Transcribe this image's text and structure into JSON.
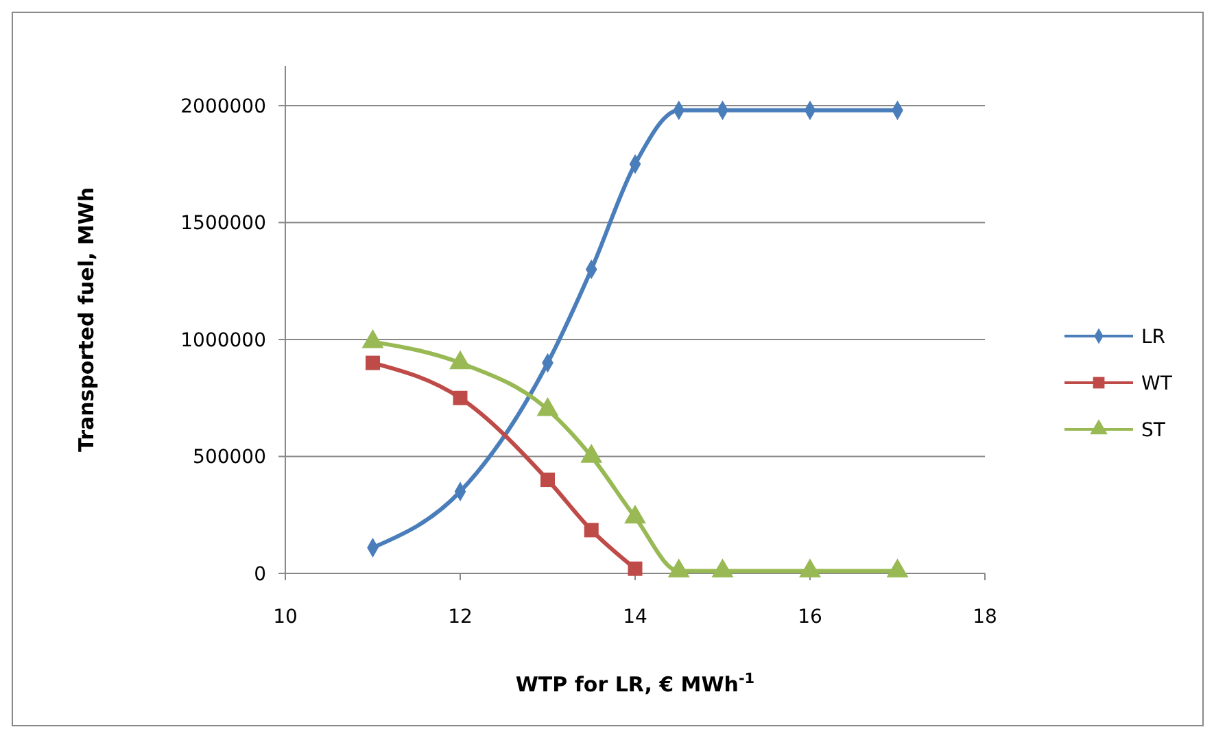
{
  "chart_data": {
    "type": "line",
    "xlabel": "WTP for LR, € MWh$^{-1}$",
    "ylabel": "Transported fuel, MWh",
    "xlim": [
      10,
      18
    ],
    "xticks": [
      10,
      12,
      14,
      16,
      18
    ],
    "ylim": [
      0,
      2170000
    ],
    "yticks": [
      0,
      500000,
      1000000,
      1500000,
      2000000
    ],
    "grid": "y",
    "legend": "right",
    "line_style": "solid",
    "series": [
      {
        "name": "LR",
        "color": "#4a7ebb",
        "marker": "diamond",
        "x": [
          11,
          12,
          13,
          13.5,
          14,
          14.5,
          15,
          16,
          17
        ],
        "values": [
          110000,
          350000,
          900000,
          1300000,
          1750000,
          1980000,
          1980000,
          1980000,
          1980000
        ]
      },
      {
        "name": "WT",
        "color": "#be4b48",
        "marker": "square",
        "x": [
          11,
          12,
          13,
          13.5,
          14
        ],
        "values": [
          900000,
          750000,
          400000,
          185000,
          20000
        ]
      },
      {
        "name": "ST",
        "color": "#98b954",
        "marker": "triangle",
        "x": [
          11,
          12,
          13,
          13.5,
          14,
          14.5,
          15,
          16,
          17
        ],
        "values": [
          990000,
          900000,
          700000,
          500000,
          240000,
          10000,
          10000,
          10000,
          10000
        ]
      }
    ]
  }
}
